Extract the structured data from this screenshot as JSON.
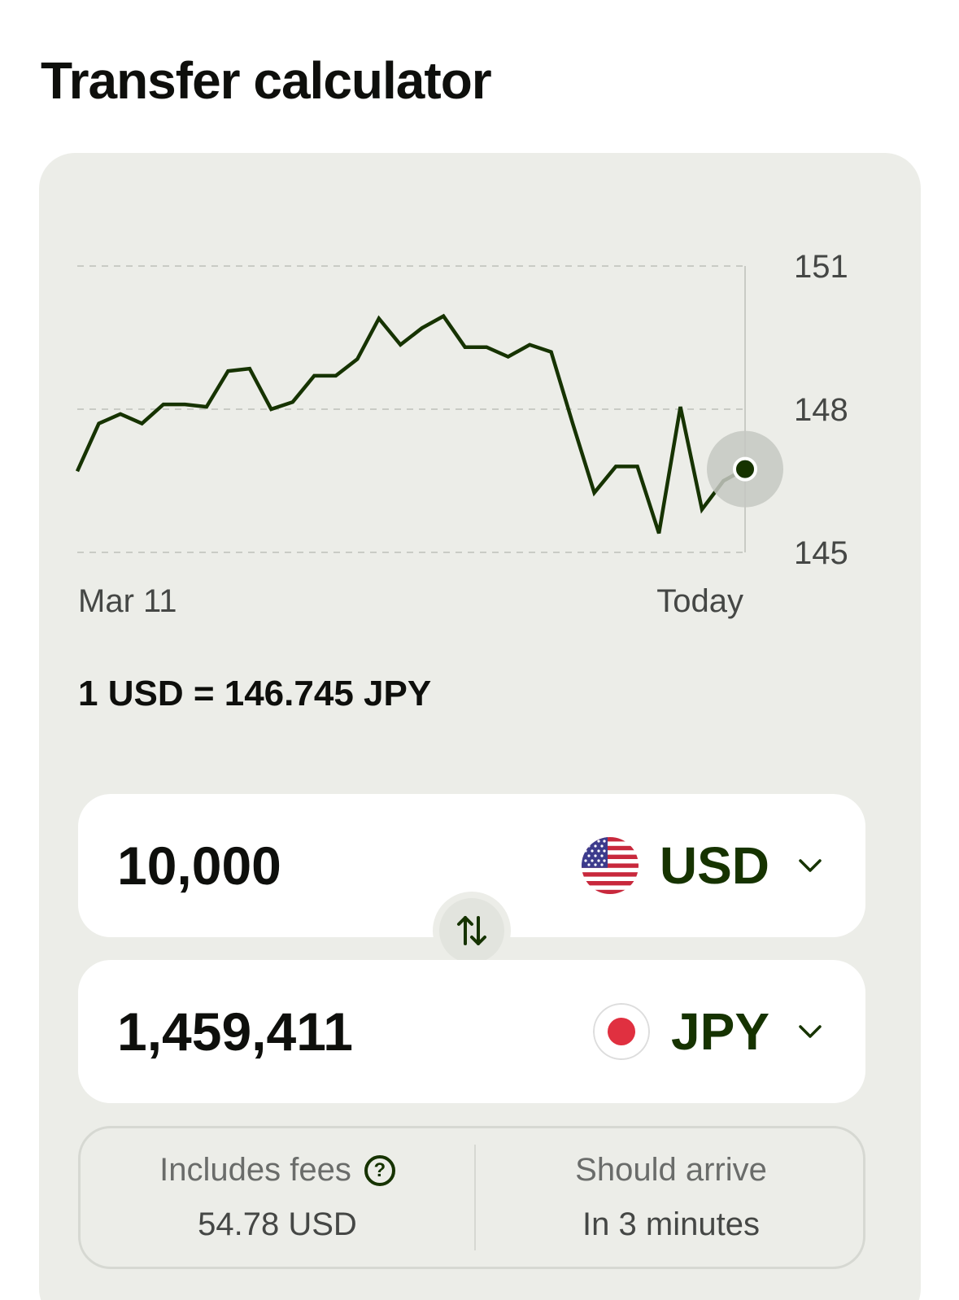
{
  "page": {
    "title": "Transfer calculator"
  },
  "chart_data": {
    "type": "line",
    "ylim": [
      145,
      151
    ],
    "y_ticks": [
      "151",
      "148",
      "145"
    ],
    "x_labels": {
      "start": "Mar 11",
      "end": "Today"
    },
    "grid": true,
    "line_color": "#163300",
    "series": [
      {
        "values": [
          146.7,
          147.7,
          147.9,
          147.7,
          148.1,
          148.1,
          148.05,
          148.8,
          148.85,
          148.0,
          148.15,
          148.7,
          148.7,
          149.05,
          149.9,
          149.35,
          149.7,
          149.95,
          149.3,
          149.3,
          149.1,
          149.35,
          149.2,
          147.7,
          146.25,
          146.8,
          146.8,
          145.4,
          148.05,
          145.9,
          146.5,
          146.745
        ]
      }
    ]
  },
  "rate": {
    "text": "1 USD = 146.745 JPY"
  },
  "send": {
    "amount": "10,000",
    "currency": "USD",
    "flag": "us-flag"
  },
  "receive": {
    "amount": "1,459,411",
    "currency": "JPY",
    "flag": "japan-flag"
  },
  "swap": {
    "icon": "swap-arrows-icon"
  },
  "fees": {
    "label": "Includes fees",
    "value": "54.78 USD",
    "icon": "question-circle-icon"
  },
  "arrival": {
    "label": "Should arrive",
    "value": "In 3 minutes"
  },
  "colors": {
    "accent": "#163300",
    "card_bg": "#ecede8",
    "surface": "#ffffff",
    "marker_halo": "#c6c8c2"
  }
}
